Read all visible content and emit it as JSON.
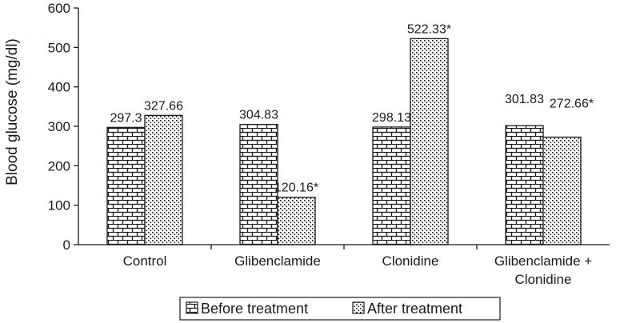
{
  "chart_data": {
    "type": "bar",
    "title": "",
    "xlabel": "",
    "ylabel": "Blood glucose (mg/dl)",
    "ylim": [
      0,
      600
    ],
    "yticks": [
      0,
      100,
      200,
      300,
      400,
      500,
      600
    ],
    "grid": false,
    "legend_position": "bottom",
    "categories": [
      [
        "Control"
      ],
      [
        "Glibenclamide"
      ],
      [
        "Clonidine"
      ],
      [
        "Glibenclamide +",
        "Clonidine"
      ]
    ],
    "series": [
      {
        "name": "Before treatment",
        "pattern": "brick",
        "values": [
          297.3,
          304.83,
          298.13,
          301.83
        ],
        "labels": [
          "297.3",
          "304.83",
          "298.13",
          "301.83"
        ]
      },
      {
        "name": "After treatment",
        "pattern": "dots",
        "values": [
          327.66,
          120.16,
          522.33,
          272.66
        ],
        "labels": [
          "327.66",
          "120.16*",
          "522.33*",
          "272.66*"
        ]
      }
    ],
    "colors": {
      "ink": "#1a1a1a",
      "background": "#ffffff"
    }
  }
}
